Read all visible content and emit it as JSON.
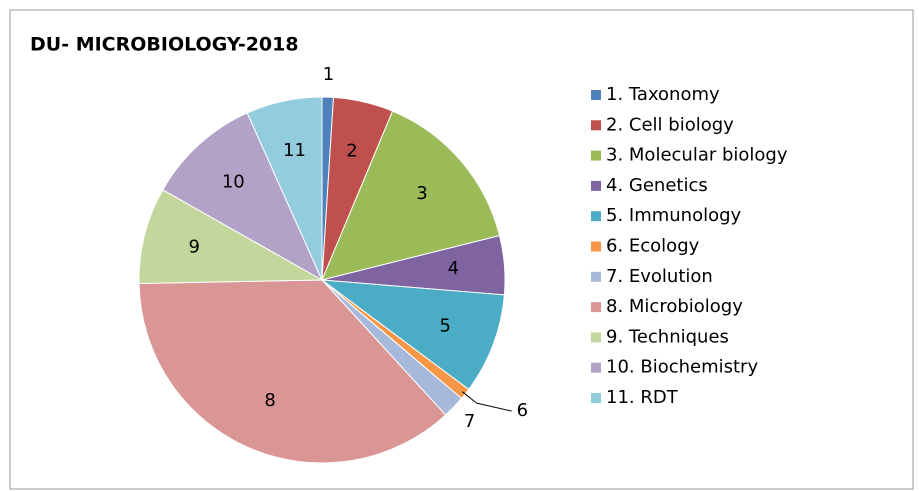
{
  "chart_data": {
    "type": "pie",
    "title": "DU- MICROBIOLOGY-2018",
    "categories": [
      "1. Taxonomy",
      "2. Cell biology",
      "3. Molecular biology",
      "4. Genetics",
      "5. Immunology",
      "6. Ecology",
      "7. Evolution",
      "8. Microbiology",
      "9. Techniques",
      "10. Biochemistry",
      "11. RDT"
    ],
    "slice_labels": [
      "1",
      "2",
      "3",
      "4",
      "5",
      "6",
      "7",
      "8",
      "9",
      "10",
      "11"
    ],
    "values": [
      1,
      5.3,
      14.8,
      5.2,
      8.9,
      1,
      2,
      36.5,
      8.5,
      10.1,
      6.7
    ],
    "colors": [
      "#4F81BD",
      "#C0504D",
      "#9BBB59",
      "#8064A2",
      "#4BACC6",
      "#F79646",
      "#A7B9DB",
      "#D99694",
      "#C3D69B",
      "#B3A2C7",
      "#93CDDD"
    ]
  }
}
